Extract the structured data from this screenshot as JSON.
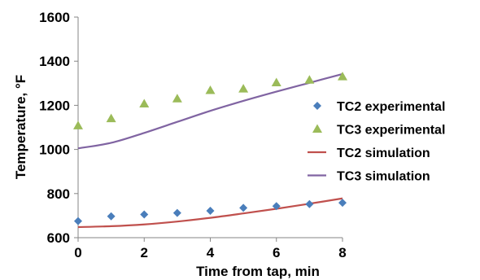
{
  "chart_data": {
    "type": "scatter",
    "xlabel": "Time from tap, min",
    "ylabel": "Temperature, °F",
    "xlim": [
      0,
      8
    ],
    "ylim": [
      600,
      1600
    ],
    "xticks": [
      "0",
      "2",
      "4",
      "6",
      "8"
    ],
    "yticks": [
      "600",
      "800",
      "1000",
      "1200",
      "1400",
      "1600"
    ],
    "grid": false,
    "legend_position": "right",
    "series": [
      {
        "name": "TC2 experimental",
        "kind": "scatter",
        "marker": "diamond",
        "color": "#4a7ebb",
        "x": [
          0,
          1,
          2,
          3,
          4,
          5,
          6,
          7,
          8
        ],
        "y": [
          675,
          697,
          705,
          712,
          722,
          735,
          743,
          752,
          758
        ]
      },
      {
        "name": "TC3 experimental",
        "kind": "scatter",
        "marker": "triangle",
        "color": "#9bbb59",
        "x": [
          0,
          1,
          2,
          3,
          4,
          5,
          6,
          7,
          8
        ],
        "y": [
          1108,
          1140,
          1207,
          1230,
          1268,
          1275,
          1303,
          1315,
          1330
        ]
      },
      {
        "name": "TC2 simulation",
        "kind": "line",
        "color": "#c0504d",
        "x": [
          0,
          1,
          2,
          3,
          4,
          5,
          6,
          7,
          8
        ],
        "y": [
          648,
          652,
          660,
          673,
          690,
          710,
          731,
          754,
          778
        ]
      },
      {
        "name": "TC3 simulation",
        "kind": "line",
        "color": "#8064a2",
        "x": [
          0,
          1,
          2,
          3,
          4,
          5,
          6,
          7,
          8
        ],
        "y": [
          1005,
          1030,
          1075,
          1125,
          1175,
          1220,
          1262,
          1302,
          1342
        ]
      }
    ]
  }
}
